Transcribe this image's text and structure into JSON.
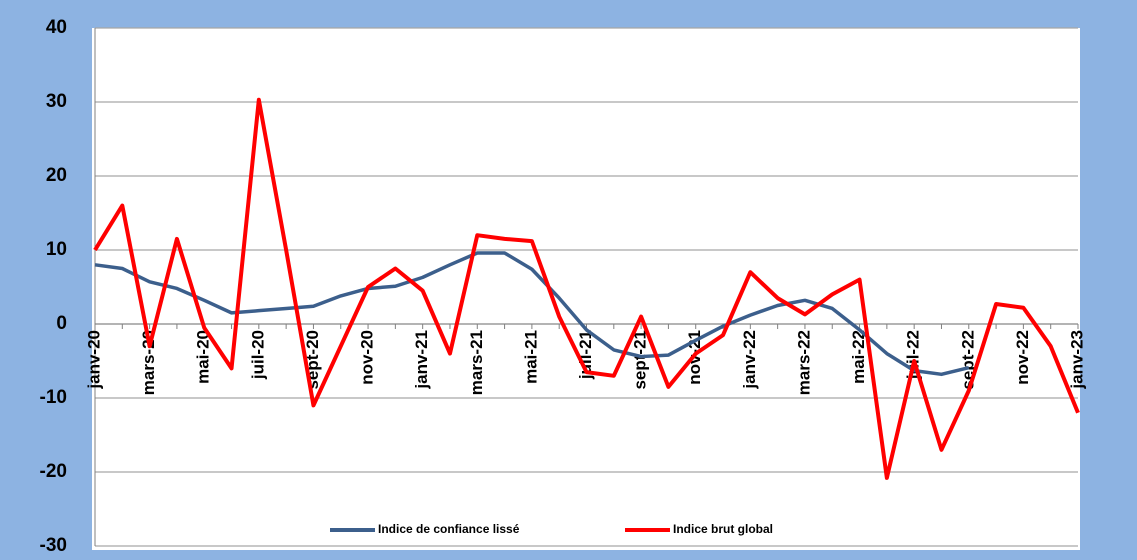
{
  "chart_data": {
    "type": "line",
    "categories": [
      "janv-20",
      null,
      "mars-20",
      null,
      "mai-20",
      null,
      "juil-20",
      null,
      "sept-20",
      null,
      "nov-20",
      null,
      "janv-21",
      null,
      "mars-21",
      null,
      "mai-21",
      null,
      "juil-21",
      null,
      "sept-21",
      null,
      "nov-21",
      null,
      "janv-22",
      null,
      "mars-22",
      null,
      "mai-22",
      null,
      "juil-22",
      null,
      "sept-22",
      null,
      "nov-22",
      null,
      "janv-23"
    ],
    "series": [
      {
        "name": "Indice de confiance lissé",
        "color": "#3c5f8c",
        "values": [
          8,
          7.5,
          5.7,
          4.8,
          3.2,
          1.5,
          1.8,
          2.1,
          2.4,
          3.8,
          4.8,
          5.1,
          6.3,
          8,
          9.6,
          9.6,
          7.4,
          3.5,
          -0.8,
          -3.5,
          -4.4,
          -4.2,
          -2.2,
          -0.3,
          1.2,
          2.5,
          3.2,
          2.1,
          -0.8,
          -4,
          -6.3,
          -6.8,
          -5.9,
          null,
          null,
          null,
          null
        ]
      },
      {
        "name": "Indice brut global",
        "color": "#ff0000",
        "values": [
          10,
          16,
          -3,
          11.5,
          -0.5,
          -6,
          30.3,
          10,
          -11,
          -3,
          5,
          7.5,
          4.5,
          -4,
          12,
          11.5,
          11.2,
          1,
          -6.5,
          -7,
          1,
          -8.5,
          -4,
          -1.5,
          7,
          3.5,
          1.3,
          4,
          6,
          -20.8,
          -5,
          -17,
          -9,
          2.7,
          2.2,
          -3,
          -12
        ]
      }
    ],
    "ylim": [
      -30,
      40
    ],
    "yticks": [
      -30,
      -20,
      -10,
      0,
      10,
      20,
      30,
      40
    ],
    "grid": true,
    "legend": "bottom"
  }
}
